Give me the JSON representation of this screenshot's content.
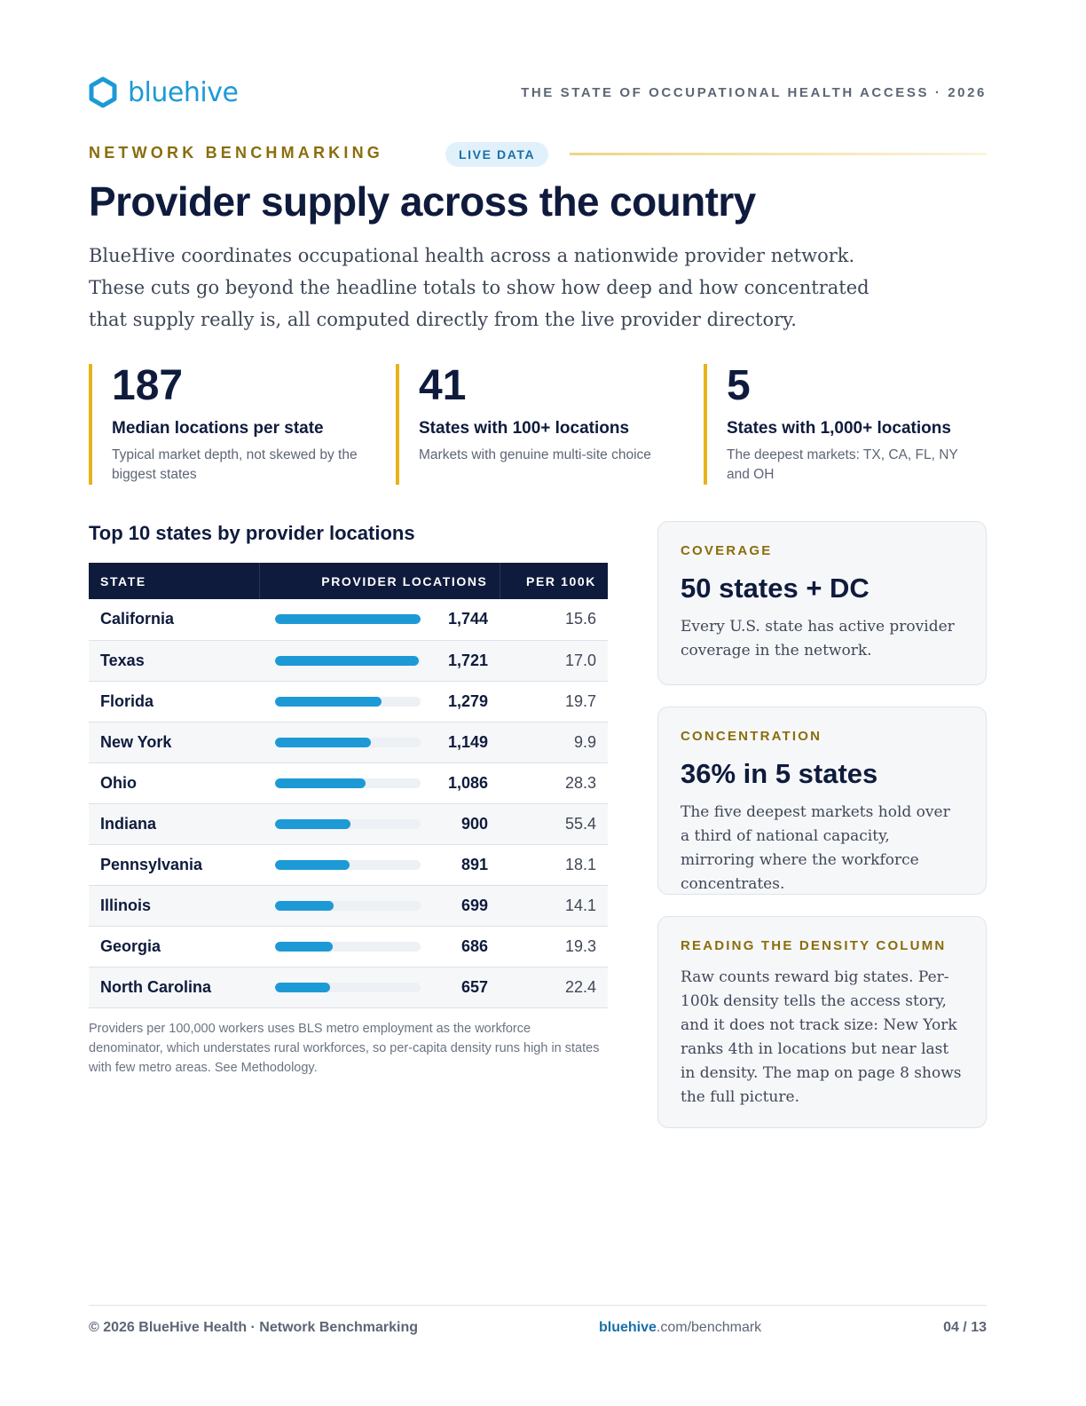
{
  "header": {
    "logo_text": "bluehive",
    "report_title": "THE STATE OF OCCUPATIONAL HEALTH ACCESS · 2026"
  },
  "section": {
    "eyebrow": "NETWORK BENCHMARKING",
    "badge": "LIVE DATA",
    "title": "Provider supply across the country",
    "intro": "BlueHive coordinates occupational health across a nationwide provider network. These cuts go beyond the headline totals to show how deep and how concentrated that supply really is, all computed directly from the live provider directory."
  },
  "stats": [
    {
      "value": "187",
      "label": "Median locations per state",
      "desc": "Typical market depth, not skewed by the biggest states"
    },
    {
      "value": "41",
      "label": "States with 100+ locations",
      "desc": "Markets with genuine multi-site choice"
    },
    {
      "value": "5",
      "label": "States with 1,000+ locations",
      "desc": "The deepest markets: TX, CA, FL, NY and OH"
    }
  ],
  "table": {
    "title": "Top 10 states by provider locations",
    "headers": {
      "state": "STATE",
      "locations": "PROVIDER LOCATIONS",
      "per100k": "PER 100K"
    },
    "note": "Providers per 100,000 workers uses BLS metro employment as the workforce denominator, which understates rural workforces, so per-capita density runs high in states with few metro areas. See Methodology."
  },
  "chart_data": {
    "type": "table",
    "columns": [
      "STATE",
      "PROVIDER LOCATIONS",
      "PER 100K"
    ],
    "rows": [
      {
        "state": "California",
        "locations": 1744,
        "locations_label": "1,744",
        "per100k": "15.6"
      },
      {
        "state": "Texas",
        "locations": 1721,
        "locations_label": "1,721",
        "per100k": "17.0"
      },
      {
        "state": "Florida",
        "locations": 1279,
        "locations_label": "1,279",
        "per100k": "19.7"
      },
      {
        "state": "New York",
        "locations": 1149,
        "locations_label": "1,149",
        "per100k": "9.9"
      },
      {
        "state": "Ohio",
        "locations": 1086,
        "locations_label": "1,086",
        "per100k": "28.3"
      },
      {
        "state": "Indiana",
        "locations": 900,
        "locations_label": "900",
        "per100k": "55.4"
      },
      {
        "state": "Pennsylvania",
        "locations": 891,
        "locations_label": "891",
        "per100k": "18.1"
      },
      {
        "state": "Illinois",
        "locations": 699,
        "locations_label": "699",
        "per100k": "14.1"
      },
      {
        "state": "Georgia",
        "locations": 686,
        "locations_label": "686",
        "per100k": "19.3"
      },
      {
        "state": "North Carolina",
        "locations": 657,
        "locations_label": "657",
        "per100k": "22.4"
      }
    ]
  },
  "cards": [
    {
      "kicker": "COVERAGE",
      "head": "50 states + DC",
      "body": "Every U.S. state has active provider coverage in the network."
    },
    {
      "kicker": "CONCENTRATION",
      "head": "36% in 5 states",
      "body": "The five deepest markets hold over a third of national capacity, mirroring where the workforce concentrates."
    },
    {
      "kicker": "READING THE DENSITY COLUMN",
      "head": "",
      "body": "Raw counts reward big states. Per-100k density tells the access story, and it does not track size: New York ranks 4th in locations but near last in density. The map on page 8 shows the full picture."
    }
  ],
  "footer": {
    "left": "© 2026 BlueHive Health · Network Benchmarking",
    "url_brand": "bluehive",
    "url_rest": ".com/benchmark",
    "page": "04 / 13"
  },
  "colors": {
    "navy": "#0f1b3d",
    "brand_blue": "#1d9ad6",
    "gold": "#8a6d0b",
    "accent_bar": "#e8b21a"
  }
}
